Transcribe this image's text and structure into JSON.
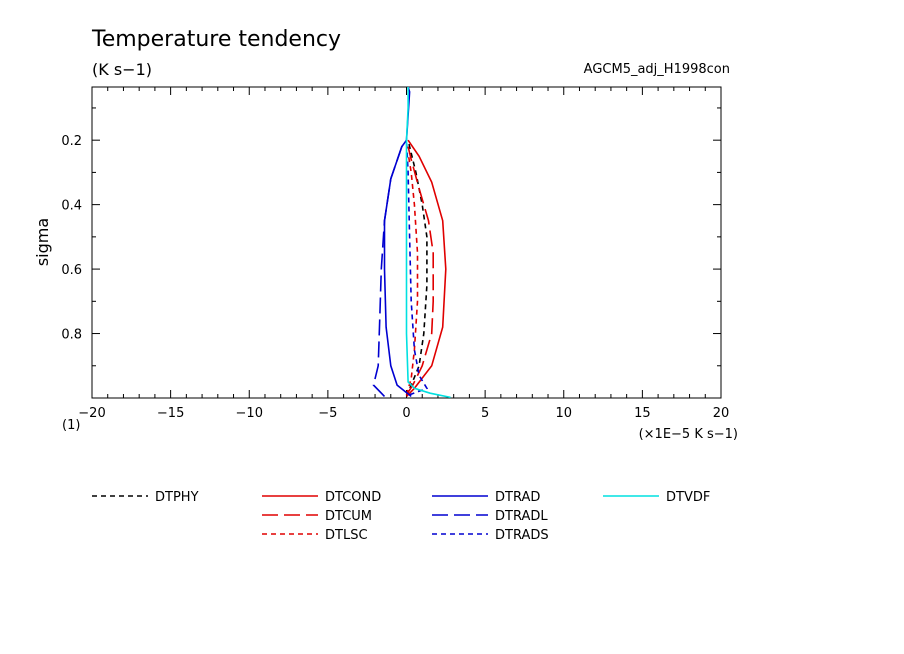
{
  "chart_data": {
    "type": "line",
    "title": "Temperature tendency",
    "subtitle": "(K s−1)",
    "run_label": "AGCM5_adj_H1998con",
    "ylabel": "sigma",
    "x_unit": "(×1E−5 K s−1)",
    "x_corner_label": "(1)",
    "xlim": [
      -20,
      20
    ],
    "ylim": [
      1.0,
      0.035
    ],
    "x_ticks": [
      -20,
      -15,
      -10,
      -5,
      0,
      5,
      10,
      15,
      20
    ],
    "x_tick_labels": [
      "−20",
      "−15",
      "−10",
      "−5",
      "0",
      "5",
      "10",
      "15",
      "20"
    ],
    "y_ticks": [
      0.2,
      0.4,
      0.6,
      0.8
    ],
    "y_tick_labels": [
      "0.2",
      "0.4",
      "0.6",
      "0.8"
    ],
    "legend_position": "bottom",
    "series": [
      {
        "name": "DTPHY",
        "color": "#000000",
        "dash": "short",
        "points": [
          [
            0.0,
            0.995
          ],
          [
            0.3,
            0.96
          ],
          [
            0.8,
            0.9
          ],
          [
            1.1,
            0.8
          ],
          [
            1.3,
            0.65
          ],
          [
            1.3,
            0.5
          ],
          [
            1.0,
            0.4
          ],
          [
            0.6,
            0.3
          ],
          [
            0.2,
            0.22
          ],
          [
            0.1,
            0.2
          ]
        ]
      },
      {
        "name": "DTCOND",
        "color": "#e00000",
        "dash": "solid",
        "points": [
          [
            0.0,
            0.995
          ],
          [
            0.5,
            0.97
          ],
          [
            1.6,
            0.9
          ],
          [
            2.3,
            0.78
          ],
          [
            2.5,
            0.6
          ],
          [
            2.3,
            0.45
          ],
          [
            1.6,
            0.33
          ],
          [
            0.8,
            0.25
          ],
          [
            0.1,
            0.2
          ]
        ]
      },
      {
        "name": "DTCUM",
        "color": "#e00000",
        "dash": "long",
        "points": [
          [
            0.0,
            0.99
          ],
          [
            0.4,
            0.96
          ],
          [
            1.0,
            0.9
          ],
          [
            1.6,
            0.8
          ],
          [
            1.7,
            0.7
          ],
          [
            1.7,
            0.55
          ],
          [
            1.4,
            0.45
          ],
          [
            0.8,
            0.35
          ],
          [
            0.3,
            0.26
          ],
          [
            0.1,
            0.22
          ]
        ]
      },
      {
        "name": "DTLSC",
        "color": "#e00000",
        "dash": "short",
        "points": [
          [
            0.0,
            0.99
          ],
          [
            0.3,
            0.94
          ],
          [
            0.5,
            0.85
          ],
          [
            0.7,
            0.7
          ],
          [
            0.7,
            0.55
          ],
          [
            0.5,
            0.4
          ],
          [
            0.3,
            0.3
          ],
          [
            0.1,
            0.24
          ]
        ]
      },
      {
        "name": "DTRAD",
        "color": "#0000d0",
        "dash": "solid",
        "points": [
          [
            0.3,
            0.995
          ],
          [
            -0.6,
            0.96
          ],
          [
            -1.0,
            0.9
          ],
          [
            -1.3,
            0.78
          ],
          [
            -1.4,
            0.6
          ],
          [
            -1.4,
            0.45
          ],
          [
            -1.0,
            0.32
          ],
          [
            -0.3,
            0.22
          ],
          [
            0.0,
            0.2
          ],
          [
            0.2,
            0.05
          ],
          [
            0.1,
            0.035
          ]
        ]
      },
      {
        "name": "DTRADL",
        "color": "#0000d0",
        "dash": "long",
        "points": [
          [
            -1.4,
            0.995
          ],
          [
            -2.1,
            0.96
          ],
          [
            -1.8,
            0.9
          ],
          [
            -1.7,
            0.75
          ],
          [
            -1.6,
            0.6
          ],
          [
            -1.4,
            0.45
          ],
          [
            -1.0,
            0.32
          ],
          [
            -0.3,
            0.22
          ],
          [
            0.0,
            0.2
          ]
        ]
      },
      {
        "name": "DTRADS",
        "color": "#0000d0",
        "dash": "short",
        "points": [
          [
            0.2,
            0.99
          ],
          [
            1.3,
            0.97
          ],
          [
            0.8,
            0.93
          ],
          [
            0.5,
            0.85
          ],
          [
            0.3,
            0.7
          ],
          [
            0.2,
            0.5
          ],
          [
            0.1,
            0.3
          ],
          [
            0.0,
            0.2
          ]
        ]
      },
      {
        "name": "DTVDF",
        "color": "#00e0e0",
        "dash": "solid",
        "points": [
          [
            2.8,
            0.998
          ],
          [
            1.5,
            0.985
          ],
          [
            0.5,
            0.97
          ],
          [
            0.1,
            0.95
          ],
          [
            0.0,
            0.8
          ],
          [
            0.0,
            0.5
          ],
          [
            0.0,
            0.2
          ],
          [
            0.1,
            0.1
          ],
          [
            0.1,
            0.035
          ]
        ]
      }
    ]
  }
}
